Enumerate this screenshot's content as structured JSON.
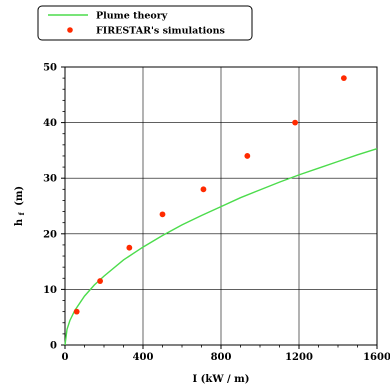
{
  "chart_data": {
    "type": "line",
    "xlabel": "I (kW / m)",
    "ylabel": "h",
    "ylabel_sub": "f",
    "ylabel_unit": "(m)",
    "xlim": [
      0,
      1600
    ],
    "ylim": [
      0,
      50
    ],
    "xticks": [
      "0",
      "400",
      "800",
      "1200",
      "1600"
    ],
    "yticks": [
      "0",
      "10",
      "20",
      "30",
      "40",
      "50"
    ],
    "grid": true,
    "legend_position": "top-left (above plot)",
    "series": [
      {
        "name": "Plume theory",
        "kind": "line",
        "color": "#4cdc4c",
        "x": [
          0,
          10,
          25,
          50,
          100,
          150,
          200,
          300,
          400,
          500,
          600,
          700,
          800,
          900,
          1000,
          1100,
          1200,
          1300,
          1400,
          1500,
          1600
        ],
        "y": [
          0,
          2.8,
          4.4,
          6.2,
          8.8,
          10.8,
          12.4,
          15.3,
          17.6,
          19.7,
          21.6,
          23.3,
          24.9,
          26.5,
          27.9,
          29.3,
          30.6,
          31.8,
          33.0,
          34.2,
          35.3
        ]
      },
      {
        "name": "FIRESTAR's simulations",
        "kind": "scatter",
        "color": "#ff2a00",
        "x": [
          60,
          180,
          330,
          500,
          710,
          935,
          1180,
          1430
        ],
        "y": [
          6,
          11.5,
          17.5,
          23.5,
          28,
          34,
          40,
          48
        ]
      }
    ]
  }
}
